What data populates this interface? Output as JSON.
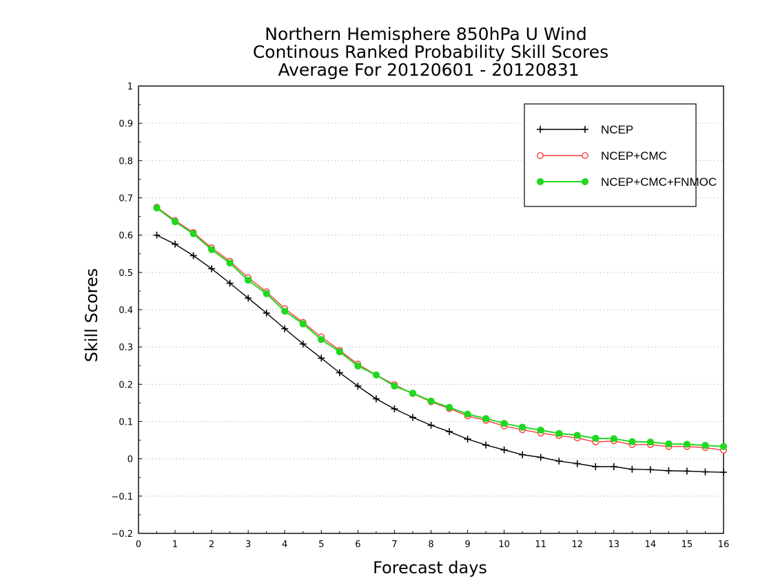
{
  "chart_data": {
    "type": "line",
    "title_lines": [
      "Northern Hemisphere 850hPa U Wind",
      "Continous Ranked Probability Skill Scores",
      "Average For 20120601 - 20120831"
    ],
    "xlabel": "Forecast days",
    "ylabel": "Skill Scores",
    "xlim": [
      0,
      16
    ],
    "ylim": [
      -0.2,
      1
    ],
    "xticks": [
      0,
      1,
      2,
      3,
      4,
      5,
      6,
      7,
      8,
      9,
      10,
      11,
      12,
      13,
      14,
      15,
      16
    ],
    "yticks": [
      -0.2,
      -0.1,
      0,
      0.1,
      0.2,
      0.3,
      0.4,
      0.5,
      0.6,
      0.7,
      0.8,
      0.9,
      1
    ],
    "ytick_labels": [
      "−0.2",
      "−0.1",
      "0",
      "0.1",
      "0.2",
      "0.3",
      "0.4",
      "0.5",
      "0.6",
      "0.7",
      "0.8",
      "0.9",
      "1"
    ],
    "grid": "y-dotted",
    "legend_position": "top-right",
    "x": [
      0.5,
      1,
      1.5,
      2,
      2.5,
      3,
      3.5,
      4,
      4.5,
      5,
      5.5,
      6,
      6.5,
      7,
      7.5,
      8,
      8.5,
      9,
      9.5,
      10,
      10.5,
      11,
      11.5,
      12,
      12.5,
      13,
      13.5,
      14,
      14.5,
      15,
      15.5,
      16
    ],
    "series": [
      {
        "name": "NCEP",
        "color": "#000000",
        "marker": "plus",
        "values": [
          0.6,
          0.576,
          0.545,
          0.51,
          0.471,
          0.431,
          0.391,
          0.349,
          0.308,
          0.27,
          0.231,
          0.195,
          0.161,
          0.134,
          0.111,
          0.09,
          0.073,
          0.053,
          0.037,
          0.024,
          0.011,
          0.004,
          -0.006,
          -0.013,
          -0.021,
          -0.021,
          -0.028,
          -0.029,
          -0.032,
          -0.033,
          -0.035,
          -0.036
        ]
      },
      {
        "name": "NCEP+CMC",
        "color": "#ff3a3a",
        "marker": "open-circle",
        "values": [
          0.675,
          0.639,
          0.607,
          0.566,
          0.53,
          0.486,
          0.448,
          0.403,
          0.366,
          0.327,
          0.291,
          0.254,
          0.225,
          0.199,
          0.175,
          0.153,
          0.135,
          0.115,
          0.103,
          0.088,
          0.078,
          0.069,
          0.062,
          0.056,
          0.045,
          0.048,
          0.038,
          0.038,
          0.033,
          0.033,
          0.03,
          0.023
        ]
      },
      {
        "name": "NCEP+CMC+FNMOC",
        "color": "#1fd81f",
        "marker": "filled-circle",
        "values": [
          0.673,
          0.636,
          0.604,
          0.561,
          0.525,
          0.479,
          0.443,
          0.396,
          0.362,
          0.32,
          0.287,
          0.249,
          0.225,
          0.195,
          0.176,
          0.155,
          0.138,
          0.12,
          0.108,
          0.095,
          0.085,
          0.077,
          0.068,
          0.063,
          0.055,
          0.054,
          0.046,
          0.045,
          0.04,
          0.039,
          0.036,
          0.033
        ]
      }
    ]
  }
}
